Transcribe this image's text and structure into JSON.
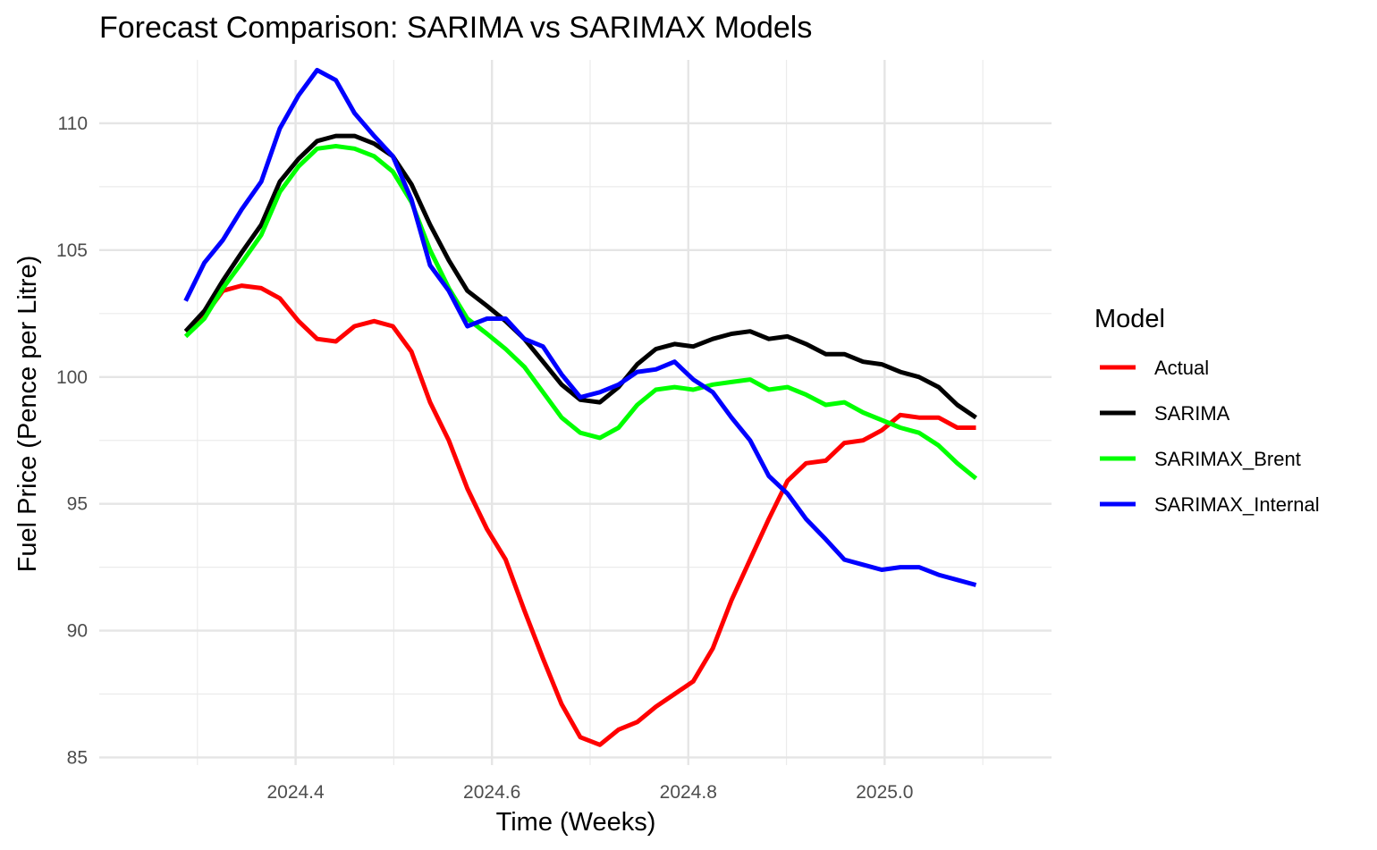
{
  "chart_data": {
    "type": "line",
    "title": "Forecast Comparison: SARIMA vs SARIMAX Models",
    "xlabel": "Time (Weeks)",
    "ylabel": "Fuel Price (Pence per Litre)",
    "xlim": [
      2024.2,
      2025.17
    ],
    "ylim": [
      84.7,
      112.5
    ],
    "x_ticks": [
      2024.4,
      2024.6,
      2024.8,
      2025.0
    ],
    "x_tick_labels": [
      "2024.4",
      "2024.6",
      "2024.8",
      "2025.0"
    ],
    "y_ticks": [
      85,
      90,
      95,
      100,
      105,
      110
    ],
    "y_tick_labels": [
      "85",
      "90",
      "95",
      "100",
      "105",
      "110"
    ],
    "grid": true,
    "legend": {
      "title": "Model",
      "position": "right"
    },
    "x": [
      2024.288,
      2024.307,
      2024.326,
      2024.345,
      2024.365,
      2024.384,
      2024.403,
      2024.422,
      2024.441,
      2024.46,
      2024.48,
      2024.499,
      2024.518,
      2024.537,
      2024.556,
      2024.575,
      2024.595,
      2024.614,
      2024.633,
      2024.652,
      2024.671,
      2024.69,
      2024.71,
      2024.729,
      2024.748,
      2024.767,
      2024.786,
      2024.805,
      2024.825,
      2024.844,
      2024.863,
      2024.882,
      2024.901,
      2024.92,
      2024.94,
      2024.959,
      2024.978,
      2024.997,
      2025.016,
      2025.035,
      2025.055,
      2025.074,
      2025.093
    ],
    "series": [
      {
        "name": "Actual",
        "color": "#ff0000",
        "values": [
          101.8,
          102.4,
          103.4,
          103.6,
          103.5,
          103.1,
          102.2,
          101.5,
          101.4,
          102.0,
          102.2,
          102.0,
          101.0,
          99.0,
          97.5,
          95.6,
          94.0,
          92.8,
          90.8,
          88.9,
          87.1,
          85.8,
          85.5,
          86.1,
          86.4,
          87.0,
          87.5,
          88.0,
          89.3,
          91.2,
          92.8,
          94.4,
          95.9,
          96.6,
          96.7,
          97.4,
          97.5,
          97.9,
          98.5,
          98.4,
          98.4,
          98.0,
          98.0
        ]
      },
      {
        "name": "SARIMA",
        "color": "#000000",
        "values": [
          101.8,
          102.6,
          103.8,
          104.9,
          106.0,
          107.7,
          108.6,
          109.3,
          109.5,
          109.5,
          109.2,
          108.7,
          107.6,
          106.0,
          104.6,
          103.4,
          102.8,
          102.2,
          101.5,
          100.6,
          99.7,
          99.1,
          99.0,
          99.6,
          100.5,
          101.1,
          101.3,
          101.2,
          101.5,
          101.7,
          101.8,
          101.5,
          101.6,
          101.3,
          100.9,
          100.9,
          100.6,
          100.5,
          100.2,
          100.0,
          99.6,
          98.9,
          98.4
        ]
      },
      {
        "name": "SARIMAX_Brent",
        "color": "#00ff00",
        "values": [
          101.6,
          102.3,
          103.5,
          104.5,
          105.6,
          107.3,
          108.3,
          109.0,
          109.1,
          109.0,
          108.7,
          108.1,
          106.9,
          105.0,
          103.5,
          102.3,
          101.7,
          101.1,
          100.4,
          99.4,
          98.4,
          97.8,
          97.6,
          98.0,
          98.9,
          99.5,
          99.6,
          99.5,
          99.7,
          99.8,
          99.9,
          99.5,
          99.6,
          99.3,
          98.9,
          99.0,
          98.6,
          98.3,
          98.0,
          97.8,
          97.3,
          96.6,
          96.0
        ]
      },
      {
        "name": "SARIMAX_Internal",
        "color": "#0000ff",
        "values": [
          103.0,
          104.5,
          105.4,
          106.6,
          107.7,
          109.8,
          111.1,
          112.1,
          111.7,
          110.4,
          109.5,
          108.7,
          107.0,
          104.4,
          103.4,
          102.0,
          102.3,
          102.3,
          101.5,
          101.2,
          100.1,
          99.2,
          99.4,
          99.7,
          100.2,
          100.3,
          100.6,
          99.9,
          99.4,
          98.4,
          97.5,
          96.1,
          95.4,
          94.4,
          93.6,
          92.8,
          92.6,
          92.4,
          92.5,
          92.5,
          92.2,
          92.0,
          91.8
        ]
      }
    ]
  }
}
